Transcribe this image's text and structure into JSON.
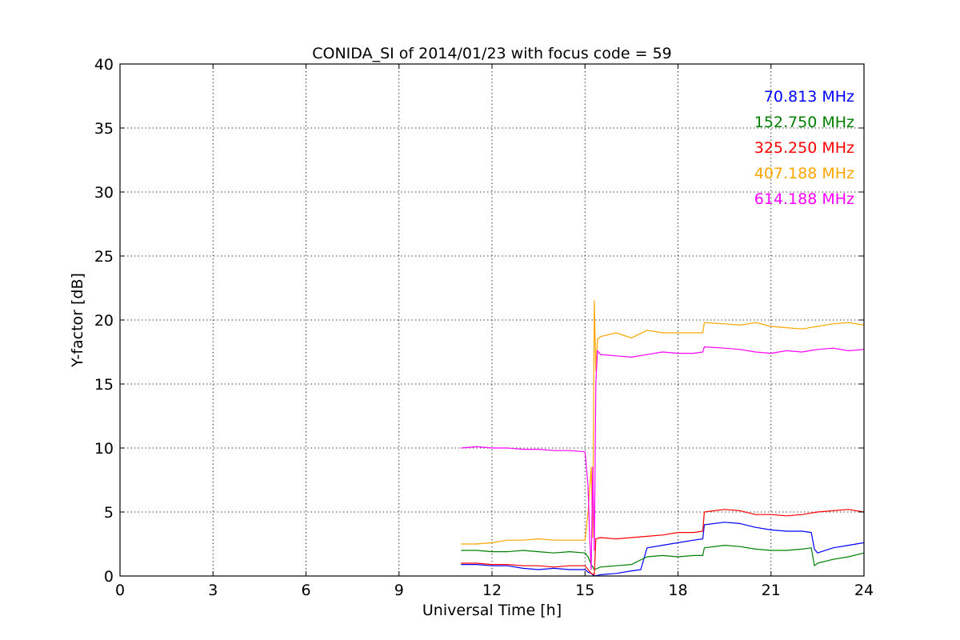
{
  "chart_data": {
    "type": "line",
    "title": "CONIDA_SI of 2014/01/23 with focus code = 59",
    "xlabel": "Universal Time [h]",
    "ylabel": "Y-factor [dB]",
    "xlim": [
      0,
      24
    ],
    "ylim": [
      0,
      40
    ],
    "xticks": [
      0,
      3,
      6,
      9,
      12,
      15,
      18,
      21,
      24
    ],
    "yticks": [
      0,
      5,
      10,
      15,
      20,
      25,
      30,
      35,
      40
    ],
    "grid": true,
    "legend_position": "top-right",
    "series": [
      {
        "name": "70.813 MHz",
        "color": "#0000ff",
        "x": [
          11.0,
          11.5,
          12.0,
          12.5,
          13.0,
          13.5,
          14.0,
          14.5,
          15.0,
          15.1,
          15.2,
          15.3,
          15.5,
          16.0,
          16.5,
          16.8,
          17.0,
          17.5,
          18.0,
          18.5,
          18.8,
          18.85,
          19.5,
          20.0,
          20.5,
          21.0,
          21.5,
          22.0,
          22.3,
          22.4,
          22.5,
          23.0,
          23.5,
          24.0
        ],
        "y": [
          0.9,
          0.9,
          0.8,
          0.8,
          0.6,
          0.5,
          0.6,
          0.5,
          0.5,
          0.3,
          0.2,
          0.0,
          0.1,
          0.2,
          0.4,
          0.5,
          2.2,
          2.4,
          2.6,
          2.8,
          2.9,
          4.0,
          4.2,
          4.1,
          3.8,
          3.6,
          3.5,
          3.5,
          3.4,
          2.1,
          1.8,
          2.2,
          2.4,
          2.6
        ]
      },
      {
        "name": "152.750 MHz",
        "color": "#008000",
        "x": [
          11.0,
          11.5,
          12.0,
          12.5,
          13.0,
          13.5,
          14.0,
          14.5,
          15.0,
          15.1,
          15.2,
          15.3,
          15.5,
          16.0,
          16.5,
          17.0,
          17.5,
          18.0,
          18.5,
          18.8,
          18.85,
          19.5,
          20.0,
          20.5,
          21.0,
          21.5,
          22.0,
          22.3,
          22.4,
          22.5,
          23.0,
          23.5,
          24.0
        ],
        "y": [
          2.0,
          2.0,
          1.9,
          1.9,
          2.0,
          1.9,
          1.8,
          1.9,
          1.8,
          1.5,
          0.9,
          0.5,
          0.7,
          0.8,
          0.9,
          1.5,
          1.6,
          1.5,
          1.6,
          1.6,
          2.2,
          2.4,
          2.3,
          2.1,
          2.0,
          2.0,
          2.1,
          2.2,
          0.8,
          1.0,
          1.3,
          1.5,
          1.8
        ]
      },
      {
        "name": "325.250 MHz",
        "color": "#ff0000",
        "x": [
          11.0,
          11.5,
          12.0,
          12.5,
          13.0,
          13.5,
          14.0,
          14.5,
          15.0,
          15.1,
          15.2,
          15.3,
          15.35,
          15.5,
          16.0,
          16.5,
          17.0,
          17.5,
          18.0,
          18.5,
          18.8,
          18.85,
          19.5,
          20.0,
          20.5,
          21.0,
          21.5,
          22.0,
          22.5,
          23.0,
          23.5,
          24.0
        ],
        "y": [
          1.0,
          1.0,
          0.9,
          0.9,
          0.8,
          0.8,
          0.7,
          0.8,
          0.8,
          0.5,
          0.2,
          0.1,
          2.9,
          3.0,
          2.9,
          3.0,
          3.1,
          3.2,
          3.4,
          3.4,
          3.5,
          5.0,
          5.2,
          5.1,
          4.8,
          4.8,
          4.7,
          4.8,
          5.0,
          5.1,
          5.2,
          5.0
        ]
      },
      {
        "name": "407.188 MHz",
        "color": "#ffa500",
        "x": [
          11.0,
          11.5,
          12.0,
          12.5,
          13.0,
          13.5,
          14.0,
          14.5,
          15.0,
          15.1,
          15.2,
          15.25,
          15.3,
          15.35,
          15.4,
          15.5,
          16.0,
          16.5,
          17.0,
          17.5,
          18.0,
          18.5,
          18.8,
          18.85,
          19.5,
          20.0,
          20.5,
          21.0,
          21.5,
          22.0,
          22.5,
          23.0,
          23.5,
          24.0
        ],
        "y": [
          2.5,
          2.5,
          2.6,
          2.8,
          2.8,
          2.9,
          2.8,
          2.8,
          2.8,
          5.0,
          8.5,
          3.0,
          21.5,
          16.0,
          18.5,
          18.7,
          19.0,
          18.6,
          19.2,
          19.0,
          19.0,
          19.0,
          19.0,
          19.8,
          19.7,
          19.6,
          19.8,
          19.5,
          19.4,
          19.3,
          19.5,
          19.7,
          19.8,
          19.6
        ]
      },
      {
        "name": "614.188 MHz",
        "color": "#ff00ff",
        "x": [
          11.0,
          11.5,
          12.0,
          12.5,
          13.0,
          13.5,
          14.0,
          14.5,
          15.0,
          15.1,
          15.15,
          15.2,
          15.25,
          15.3,
          15.35,
          15.4,
          15.5,
          16.0,
          16.5,
          17.0,
          17.5,
          18.0,
          18.5,
          18.8,
          18.85,
          19.5,
          20.0,
          20.5,
          21.0,
          21.5,
          22.0,
          22.5,
          23.0,
          23.5,
          24.0
        ],
        "y": [
          10.0,
          10.1,
          10.0,
          10.0,
          9.9,
          9.9,
          9.8,
          9.8,
          9.7,
          7.0,
          3.0,
          0.5,
          8.5,
          2.0,
          15.0,
          17.6,
          17.3,
          17.2,
          17.1,
          17.3,
          17.5,
          17.4,
          17.4,
          17.5,
          17.9,
          17.8,
          17.7,
          17.5,
          17.4,
          17.6,
          17.5,
          17.7,
          17.8,
          17.6,
          17.7
        ]
      }
    ]
  }
}
